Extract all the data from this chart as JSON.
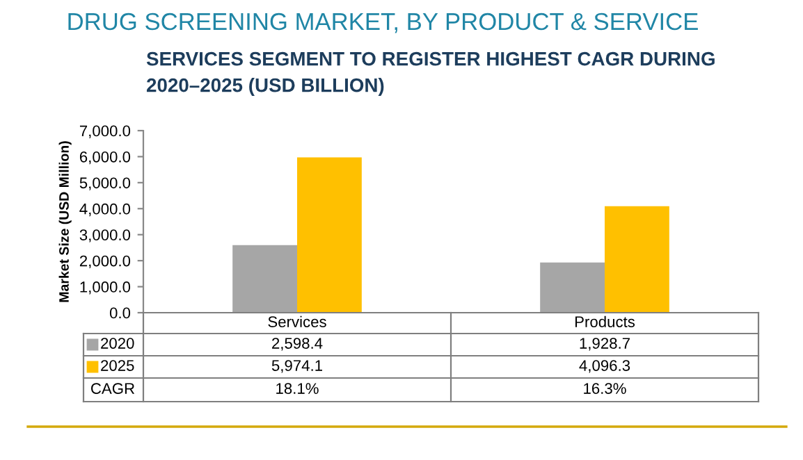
{
  "chart_data": {
    "type": "bar",
    "title": "DRUG SCREENING MARKET, BY PRODUCT & SERVICE",
    "subtitle": "SERVICES SEGMENT TO REGISTER HIGHEST CAGR DURING\n2020–2025 (USD BILLION)",
    "ylabel": "Market Size (USD Million)",
    "categories": [
      "Services",
      "Products"
    ],
    "series": [
      {
        "name": "2020",
        "color": "#a6a6a6",
        "values": [
          2598.4,
          1928.7
        ],
        "value_labels": [
          "2,598.4",
          "1,928.7"
        ]
      },
      {
        "name": "2025",
        "color": "#ffc000",
        "values": [
          5974.1,
          4096.3
        ],
        "value_labels": [
          "5,974.1",
          "4,096.3"
        ]
      }
    ],
    "ylim": [
      0,
      7000
    ],
    "yticks": [
      {
        "value": 0,
        "label": "0.0"
      },
      {
        "value": 1000,
        "label": "1,000.0"
      },
      {
        "value": 2000,
        "label": "2,000.0"
      },
      {
        "value": 3000,
        "label": "3,000.0"
      },
      {
        "value": 4000,
        "label": "4,000.0"
      },
      {
        "value": 5000,
        "label": "5,000.0"
      },
      {
        "value": 6000,
        "label": "6,000.0"
      },
      {
        "value": 7000,
        "label": "7,000.0"
      }
    ],
    "legend": "left",
    "grid": false,
    "annotations": [
      "CAGR",
      "18.1%",
      "16.3%"
    ]
  }
}
